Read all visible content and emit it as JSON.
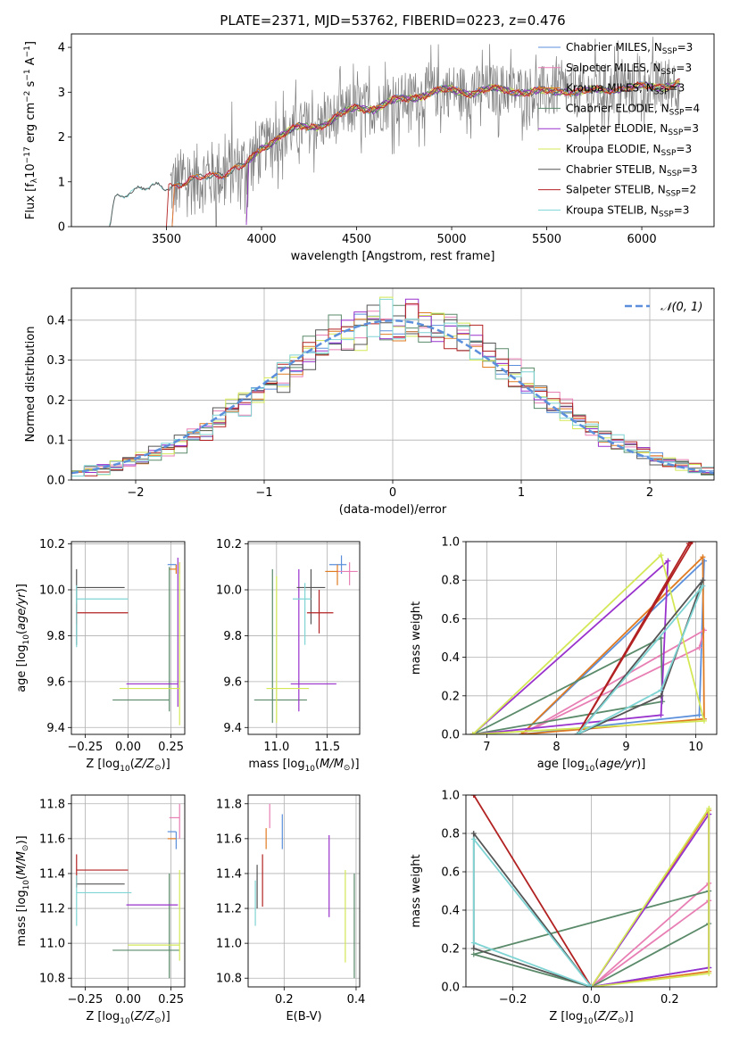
{
  "figure": {
    "title": "PLATE=2371, MJD=53762, FIBERID=0223, z=0.476",
    "colors": {
      "chabrier_miles": "#5b8fdc",
      "salpeter_miles": "#e87fb4",
      "kroupa_miles": "#e07b22",
      "chabrier_elodie": "#5a8a6a",
      "salpeter_elodie": "#9932cc",
      "kroupa_elodie": "#d4e857",
      "chabrier_stelib": "#555555",
      "salpeter_stelib": "#b22222",
      "kroupa_stelib": "#7fd4d4",
      "data": "#808080"
    }
  },
  "chart_data": [
    {
      "id": "spectrum",
      "type": "line",
      "xlabel": "wavelength [Angstrom, rest frame]",
      "ylabel": "Flux [f_λ 10^-17 erg cm^-2 s^-1 A^-1]",
      "xlim": [
        3000,
        6380
      ],
      "ylim": [
        0,
        4.3
      ],
      "xticks": [
        3500,
        4000,
        4500,
        5000,
        5500,
        6000
      ],
      "yticks": [
        0,
        1,
        2,
        3,
        4
      ],
      "legend_position": "top-right",
      "legend": [
        {
          "key": "chabrier_miles",
          "label": "Chabrier MILES, N",
          "sub": "SSP",
          "suffix": "=3"
        },
        {
          "key": "salpeter_miles",
          "label": "Salpeter MILES, N",
          "sub": "SSP",
          "suffix": "=3"
        },
        {
          "key": "kroupa_miles",
          "label": "Kroupa MILES, N",
          "sub": "SSP",
          "suffix": "=3"
        },
        {
          "key": "chabrier_elodie",
          "label": "Chabrier ELODIE, N",
          "sub": "SSP",
          "suffix": "=4"
        },
        {
          "key": "salpeter_elodie",
          "label": "Salpeter ELODIE, N",
          "sub": "SSP",
          "suffix": "=3"
        },
        {
          "key": "kroupa_elodie",
          "label": "Kroupa ELODIE, N",
          "sub": "SSP",
          "suffix": "=3"
        },
        {
          "key": "chabrier_stelib",
          "label": "Chabrier STELIB, N",
          "sub": "SSP",
          "suffix": "=3"
        },
        {
          "key": "salpeter_stelib",
          "label": "Salpeter STELIB, N",
          "sub": "SSP",
          "suffix": "=2"
        },
        {
          "key": "kroupa_stelib",
          "label": "Kroupa STELIB, N",
          "sub": "SSP",
          "suffix": "=3"
        }
      ],
      "continuum_model": {
        "x": [
          3200,
          3230,
          3300,
          3400,
          3500,
          3600,
          3700,
          3800,
          3900,
          3950,
          4000,
          4100,
          4200,
          4300,
          4400,
          4500,
          4600,
          4700,
          4800,
          4900,
          5000,
          5100,
          5200,
          5300,
          5400,
          5500,
          5600,
          5700,
          5800,
          5900,
          6000,
          6100,
          6200
        ],
        "y": [
          0.0,
          0.65,
          0.8,
          0.85,
          0.9,
          1.0,
          1.1,
          1.2,
          1.35,
          1.5,
          1.75,
          2.05,
          2.2,
          2.25,
          2.45,
          2.65,
          2.65,
          2.8,
          2.9,
          3.0,
          3.05,
          3.0,
          3.05,
          3.05,
          3.0,
          3.0,
          3.05,
          3.0,
          3.05,
          3.1,
          3.1,
          3.15,
          3.2
        ]
      },
      "model_range": {
        "kroupa_stelib": [
          3200,
          6200
        ],
        "chabrier_stelib": [
          3200,
          6200
        ],
        "salpeter_stelib": [
          3500,
          6200
        ],
        "chabrier_miles": [
          3530,
          6200
        ],
        "salpeter_miles": [
          3530,
          6200
        ],
        "kroupa_miles": [
          3530,
          6200
        ],
        "chabrier_elodie": [
          3920,
          6200
        ],
        "salpeter_elodie": [
          3920,
          6200
        ],
        "kroupa_elodie": [
          3920,
          6200
        ]
      },
      "data_range": [
        3520,
        6200
      ]
    },
    {
      "id": "residuals",
      "type": "step",
      "xlabel": "(data-model)/error",
      "ylabel": "Normed distribution",
      "xlim": [
        -2.5,
        2.5
      ],
      "ylim": [
        0,
        0.48
      ],
      "xticks": [
        -2,
        -1,
        0,
        1,
        2
      ],
      "yticks": [
        0.0,
        0.1,
        0.2,
        0.3,
        0.4
      ],
      "grid": true,
      "legend_position": "top-right",
      "legend_label": "𝒩(0, 1)"
    },
    {
      "id": "age_vs_Z",
      "type": "errorbar",
      "xlabel": "Z [log10(Z/Z☉)]",
      "ylabel": "age [log10(age/yr)]",
      "xlim": [
        -0.33,
        0.33
      ],
      "ylim": [
        9.37,
        10.21
      ],
      "xticks": [
        -0.25,
        0.0,
        0.25
      ],
      "yticks": [
        9.4,
        9.6,
        9.8,
        10.0,
        10.2
      ],
      "grid": true,
      "points": [
        {
          "key": "chabrier_miles",
          "x": 0.28,
          "y": 10.11,
          "xl": 0.05,
          "xr": 0.0,
          "yl": 0.02,
          "yu": 0.0
        },
        {
          "key": "salpeter_miles",
          "x": 0.3,
          "y": 10.11,
          "xl": 0.0,
          "xr": 0.0,
          "yl": 0.04,
          "yu": 0.01
        },
        {
          "key": "kroupa_miles",
          "x": 0.28,
          "y": 10.09,
          "xl": 0.04,
          "xr": 0.0,
          "yl": 0.02,
          "yu": 0.02
        },
        {
          "key": "chabrier_elodie",
          "x": 0.24,
          "y": 9.52,
          "xl": 0.33,
          "xr": 0.0,
          "yl": 0.05,
          "yu": 0.58
        },
        {
          "key": "salpeter_elodie",
          "x": 0.29,
          "y": 9.59,
          "xl": 0.3,
          "xr": 0.0,
          "yl": 0.1,
          "yu": 0.55
        },
        {
          "key": "kroupa_elodie",
          "x": 0.3,
          "y": 9.57,
          "xl": 0.35,
          "xr": 0.0,
          "yl": 0.16,
          "yu": 0.55
        },
        {
          "key": "chabrier_stelib",
          "x": -0.3,
          "y": 10.01,
          "xl": 0.0,
          "xr": 0.28,
          "yl": 0.25,
          "yu": 0.08
        },
        {
          "key": "salpeter_stelib",
          "x": -0.3,
          "y": 9.9,
          "xl": 0.0,
          "xr": 0.3,
          "yl": 0.05,
          "yu": 0.04
        },
        {
          "key": "kroupa_stelib",
          "x": -0.3,
          "y": 9.96,
          "xl": 0.0,
          "xr": 0.3,
          "yl": 0.21,
          "yu": 0.06
        }
      ]
    },
    {
      "id": "age_vs_mass",
      "type": "errorbar",
      "xlabel": "mass [log10(M/M☉)]",
      "ylabel": "",
      "xlim": [
        10.72,
        11.82
      ],
      "ylim": [
        9.37,
        10.21
      ],
      "xticks": [
        11.0,
        11.5
      ],
      "yticks": [
        9.4,
        9.6,
        9.8,
        10.0,
        10.2
      ],
      "grid": true,
      "points": [
        {
          "key": "chabrier_miles",
          "x": 11.64,
          "y": 10.11,
          "xl": 0.12,
          "xr": 0.05,
          "yl": 0.04,
          "yu": 0.04
        },
        {
          "key": "salpeter_miles",
          "x": 11.72,
          "y": 10.08,
          "xl": 0.12,
          "xr": 0.08,
          "yl": 0.06,
          "yu": 0.04
        },
        {
          "key": "kroupa_miles",
          "x": 11.6,
          "y": 10.08,
          "xl": 0.12,
          "xr": 0.0,
          "yl": 0.06,
          "yu": 0.03
        },
        {
          "key": "chabrier_elodie",
          "x": 10.96,
          "y": 9.52,
          "xl": 0.18,
          "xr": 0.34,
          "yl": 0.1,
          "yu": 0.57
        },
        {
          "key": "salpeter_elodie",
          "x": 11.22,
          "y": 9.59,
          "xl": 0.08,
          "xr": 0.37,
          "yl": 0.12,
          "yu": 0.5
        },
        {
          "key": "kroupa_elodie",
          "x": 11.0,
          "y": 9.57,
          "xl": 0.1,
          "xr": 0.32,
          "yl": 0.15,
          "yu": 0.49
        },
        {
          "key": "chabrier_stelib",
          "x": 11.34,
          "y": 10.01,
          "xl": 0.14,
          "xr": 0.14,
          "yl": 0.16,
          "yu": 0.08
        },
        {
          "key": "salpeter_stelib",
          "x": 11.42,
          "y": 9.9,
          "xl": 0.12,
          "xr": 0.14,
          "yl": 0.09,
          "yu": 0.1
        },
        {
          "key": "kroupa_stelib",
          "x": 11.28,
          "y": 9.96,
          "xl": 0.12,
          "xr": 0.06,
          "yl": 0.2,
          "yu": 0.07
        }
      ]
    },
    {
      "id": "mass_vs_Z",
      "type": "errorbar",
      "xlabel": "Z [log10(Z/Z☉)]",
      "ylabel": "mass [log10(M/M☉)]",
      "xlim": [
        -0.33,
        0.33
      ],
      "ylim": [
        10.75,
        11.85
      ],
      "xticks": [
        -0.25,
        0.0,
        0.25
      ],
      "yticks": [
        10.8,
        11.0,
        11.2,
        11.4,
        11.6,
        11.8
      ],
      "grid": true,
      "points": [
        {
          "key": "chabrier_miles",
          "x": 0.28,
          "y": 11.64,
          "xl": 0.05,
          "xr": 0.0,
          "yl": 0.1,
          "yu": 0.0
        },
        {
          "key": "salpeter_miles",
          "x": 0.3,
          "y": 11.72,
          "xl": 0.06,
          "xr": 0.0,
          "yl": 0.12,
          "yu": 0.08
        },
        {
          "key": "kroupa_miles",
          "x": 0.28,
          "y": 11.6,
          "xl": 0.05,
          "xr": 0.0,
          "yl": 0.0,
          "yu": 0.0
        },
        {
          "key": "chabrier_elodie",
          "x": 0.24,
          "y": 10.96,
          "xl": 0.33,
          "xr": 0.06,
          "yl": 0.16,
          "yu": 0.44
        },
        {
          "key": "salpeter_elodie",
          "x": 0.29,
          "y": 11.22,
          "xl": 0.3,
          "xr": 0.0,
          "yl": 0.0,
          "yu": 0.0
        },
        {
          "key": "kroupa_elodie",
          "x": 0.3,
          "y": 10.99,
          "xl": 0.3,
          "xr": 0.0,
          "yl": 0.09,
          "yu": 0.43
        },
        {
          "key": "chabrier_stelib",
          "x": -0.3,
          "y": 11.34,
          "xl": 0.0,
          "xr": 0.28,
          "yl": 0.0,
          "yu": 0.0
        },
        {
          "key": "salpeter_stelib",
          "x": -0.3,
          "y": 11.42,
          "xl": 0.0,
          "xr": 0.3,
          "yl": 0.1,
          "yu": 0.09
        },
        {
          "key": "kroupa_stelib",
          "x": -0.3,
          "y": 11.29,
          "xl": 0.0,
          "xr": 0.32,
          "yl": 0.19,
          "yu": 0.1
        }
      ]
    },
    {
      "id": "mass_vs_EBV",
      "type": "errorbar",
      "xlabel": "E(B-V)",
      "ylabel": "",
      "xlim": [
        0.1,
        0.41
      ],
      "ylim": [
        10.75,
        11.85
      ],
      "xticks": [
        0.2,
        0.4
      ],
      "yticks": [
        10.8,
        11.0,
        11.2,
        11.4,
        11.6,
        11.8
      ],
      "grid": true,
      "points": [
        {
          "key": "chabrier_miles",
          "x": 0.195,
          "y": 11.64,
          "xl": 0.0,
          "xr": 0.0,
          "yl": 0.1,
          "yu": 0.1
        },
        {
          "key": "salpeter_miles",
          "x": 0.16,
          "y": 11.72,
          "xl": 0.0,
          "xr": 0.0,
          "yl": 0.06,
          "yu": 0.08
        },
        {
          "key": "kroupa_miles",
          "x": 0.15,
          "y": 11.6,
          "xl": 0.0,
          "xr": 0.0,
          "yl": 0.06,
          "yu": 0.06
        },
        {
          "key": "chabrier_elodie",
          "x": 0.395,
          "y": 11.05,
          "xl": 0.0,
          "xr": 0.0,
          "yl": 0.25,
          "yu": 0.35
        },
        {
          "key": "salpeter_elodie",
          "x": 0.325,
          "y": 11.4,
          "xl": 0.0,
          "xr": 0.0,
          "yl": 0.25,
          "yu": 0.22
        },
        {
          "key": "kroupa_elodie",
          "x": 0.37,
          "y": 11.15,
          "xl": 0.0,
          "xr": 0.0,
          "yl": 0.26,
          "yu": 0.27
        },
        {
          "key": "chabrier_stelib",
          "x": 0.125,
          "y": 11.3,
          "xl": 0.0,
          "xr": 0.0,
          "yl": 0.1,
          "yu": 0.15
        },
        {
          "key": "salpeter_stelib",
          "x": 0.14,
          "y": 11.35,
          "xl": 0.0,
          "xr": 0.0,
          "yl": 0.14,
          "yu": 0.16
        },
        {
          "key": "kroupa_stelib",
          "x": 0.12,
          "y": 11.2,
          "xl": 0.0,
          "xr": 0.0,
          "yl": 0.1,
          "yu": 0.16
        }
      ]
    },
    {
      "id": "weight_vs_age",
      "type": "line",
      "xlabel": "age [log10(age/yr)]",
      "ylabel": "mass weight",
      "xlim": [
        6.7,
        10.3
      ],
      "ylim": [
        0,
        1.0
      ],
      "xticks": [
        7,
        8,
        9,
        10
      ],
      "yticks": [
        0.0,
        0.2,
        0.4,
        0.6,
        0.8,
        1.0
      ],
      "grid": true,
      "series": [
        {
          "key": "chabrier_miles",
          "x": [
            7.5,
            10.05,
            10.12,
            7.5
          ],
          "y": [
            0.0,
            0.1,
            0.9,
            0.0
          ]
        },
        {
          "key": "salpeter_miles",
          "x": [
            7.5,
            10.05,
            10.12,
            7.5
          ],
          "y": [
            0.0,
            0.45,
            0.54,
            0.0
          ]
        },
        {
          "key": "kroupa_miles",
          "x": [
            7.5,
            10.1,
            10.12,
            7.5
          ],
          "y": [
            0.0,
            0.92,
            0.08,
            0.0
          ]
        },
        {
          "key": "chabrier_elodie",
          "x": [
            6.8,
            9.5,
            9.52,
            6.8
          ],
          "y": [
            0.0,
            0.5,
            0.17,
            0.0
          ]
        },
        {
          "key": "salpeter_elodie",
          "x": [
            6.8,
            9.5,
            9.6,
            6.8
          ],
          "y": [
            0.0,
            0.1,
            0.9,
            0.0
          ]
        },
        {
          "key": "kroupa_elodie",
          "x": [
            6.8,
            9.5,
            10.12,
            6.8
          ],
          "y": [
            0.0,
            0.93,
            0.07,
            0.0
          ]
        },
        {
          "key": "chabrier_stelib",
          "x": [
            8.3,
            9.5,
            10.1,
            8.3
          ],
          "y": [
            0.0,
            0.2,
            0.8,
            0.0
          ]
        },
        {
          "key": "salpeter_stelib",
          "x": [
            8.3,
            9.9,
            9.95,
            8.3
          ],
          "y": [
            0.0,
            0.99,
            1.0,
            0.0
          ]
        },
        {
          "key": "kroupa_stelib",
          "x": [
            8.3,
            9.5,
            10.1,
            8.3
          ],
          "y": [
            0.0,
            0.23,
            0.77,
            0.0
          ]
        }
      ]
    },
    {
      "id": "weight_vs_Z",
      "type": "line",
      "xlabel": "Z [log10(Z/Z☉)]",
      "ylabel": "mass weight",
      "xlim": [
        -0.32,
        0.32
      ],
      "ylim": [
        0,
        1.0
      ],
      "xticks": [
        -0.2,
        0.0,
        0.2
      ],
      "yticks": [
        0.0,
        0.2,
        0.4,
        0.6,
        0.8,
        1.0
      ],
      "grid": true,
      "series": [
        {
          "key": "chabrier_miles",
          "x": [
            0.0,
            0.3,
            0.3,
            0.0
          ],
          "y": [
            0.0,
            0.1,
            0.9,
            0.0
          ]
        },
        {
          "key": "salpeter_miles",
          "x": [
            0.0,
            0.3,
            0.3,
            0.0
          ],
          "y": [
            0.0,
            0.45,
            0.54,
            0.0
          ]
        },
        {
          "key": "kroupa_miles",
          "x": [
            0.0,
            0.3,
            0.3,
            0.0
          ],
          "y": [
            0.0,
            0.92,
            0.08,
            0.0
          ]
        },
        {
          "key": "chabrier_elodie",
          "x": [
            0.0,
            -0.3,
            0.3,
            0.3,
            0.0
          ],
          "y": [
            0.0,
            0.17,
            0.5,
            0.33,
            0.0
          ]
        },
        {
          "key": "salpeter_elodie",
          "x": [
            0.0,
            0.3,
            0.3,
            0.0
          ],
          "y": [
            0.0,
            0.1,
            0.9,
            0.0
          ]
        },
        {
          "key": "kroupa_elodie",
          "x": [
            0.0,
            0.3,
            0.3,
            0.0
          ],
          "y": [
            0.0,
            0.93,
            0.07,
            0.0
          ]
        },
        {
          "key": "chabrier_stelib",
          "x": [
            0.0,
            -0.3,
            -0.3,
            0.0
          ],
          "y": [
            0.0,
            0.2,
            0.8,
            0.0
          ]
        },
        {
          "key": "salpeter_stelib",
          "x": [
            0.0,
            -0.3,
            -0.3,
            0.0
          ],
          "y": [
            0.0,
            1.0,
            1.0,
            0.0
          ]
        },
        {
          "key": "kroupa_stelib",
          "x": [
            0.0,
            -0.3,
            -0.3,
            0.0
          ],
          "y": [
            0.0,
            0.23,
            0.77,
            0.0
          ]
        }
      ]
    }
  ]
}
